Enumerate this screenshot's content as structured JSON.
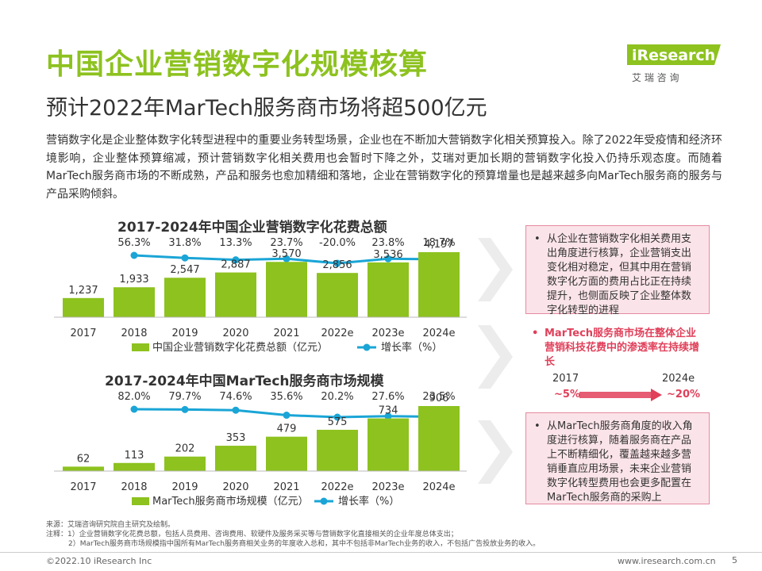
{
  "header": {
    "title": "中国企业营销数字化规模核算",
    "subtitle": "预计2022年MarTech服务商市场将超500亿元",
    "logo_text": "iResearch",
    "logo_sub": "艾 瑞 咨 询"
  },
  "intro": "营销数字化是企业整体数字化转型进程中的重要业务转型场景，企业也在不断加大营销数字化相关预算投入。除了2022年受疫情和经济环境影响，企业整体预算缩减，预计营销数字化相关费用也会暂时下降之外，艾瑞对更加长期的营销数字化投入仍持乐观态度。而随着MarTech服务商市场的不断成熟，产品和服务也愈加精细和落地，企业在营销数字化的预算增量也是越来越多向MarTech服务商的服务与产品采购倾斜。",
  "colors": {
    "title_green": "#8dc21f",
    "bar_green": "#8dc21f",
    "line_blue": "#1aa5d6",
    "box_border": "#e48aa0",
    "box_fill": "#fbe4e9",
    "highlight_red": "#e0405a"
  },
  "chart_data": [
    {
      "type": "bar",
      "title": "2017-2024年中国企业营销数字化花费总额",
      "categories": [
        "2017",
        "2018",
        "2019",
        "2020",
        "2021",
        "2022e",
        "2023e",
        "2024e"
      ],
      "series": [
        {
          "name": "中国企业营销数字化花费总额（亿元）",
          "type": "bar",
          "values": [
            1237,
            1933,
            2547,
            2887,
            3570,
            2856,
            3536,
            4197
          ],
          "labels": [
            "1,237",
            "1,933",
            "2,547",
            "2,887",
            "3,570",
            "2,856",
            "3,536",
            "4,197"
          ]
        },
        {
          "name": "增长率（%）",
          "type": "line",
          "values": [
            null,
            56.3,
            31.8,
            13.3,
            23.7,
            -20.0,
            23.8,
            18.7
          ],
          "labels": [
            "",
            "56.3%",
            "31.8%",
            "13.3%",
            "23.7%",
            "-20.0%",
            "23.8%",
            "18.7%"
          ]
        }
      ],
      "legend": [
        "中国企业营销数字化花费总额（亿元）",
        "增长率（%）"
      ],
      "ylim": [
        0,
        4400
      ]
    },
    {
      "type": "bar",
      "title": "2017-2024年中国MarTech服务商市场规模",
      "categories": [
        "2017",
        "2018",
        "2019",
        "2020",
        "2021",
        "2022e",
        "2023e",
        "2024e"
      ],
      "series": [
        {
          "name": "MarTech服务商市场规模（亿元）",
          "type": "bar",
          "values": [
            62,
            113,
            202,
            353,
            479,
            575,
            734,
            906
          ],
          "labels": [
            "62",
            "113",
            "202",
            "353",
            "479",
            "575",
            "734",
            "906"
          ]
        },
        {
          "name": "增长率（%）",
          "type": "line",
          "values": [
            null,
            82.0,
            79.7,
            74.6,
            35.6,
            20.2,
            27.6,
            23.5
          ],
          "labels": [
            "",
            "82.0%",
            "79.7%",
            "74.6%",
            "35.6%",
            "20.2%",
            "27.6%",
            "23.5%"
          ]
        }
      ],
      "legend": [
        "MarTech服务商市场规模（亿元）",
        "增长率（%）"
      ],
      "ylim": [
        0,
        950
      ]
    }
  ],
  "side": {
    "box1": "从企业在营销数字化相关费用支出角度进行核算，企业营销支出变化相对稳定，但其中用在营销数字化方面的费用占比正在持续提升，也侧面反映了企业整体数字化转型的进程",
    "highlight": "MarTech服务商市场在整体企业营销科技花费中的渗透率在持续增长",
    "compare": {
      "start_year": "2017",
      "end_year": "2024e",
      "start_value": "~5%",
      "end_value": "~20%"
    },
    "box2": "从MarTech服务商角度的收入角度进行核算，随着服务商在产品上不断精细化，覆盖越来越多营销垂直应用场景，未来企业营销数字化转型费用也会更多配置在MarTech服务商的采购上"
  },
  "footnotes": {
    "source": "来源：艾瑞咨询研究院自主研究及绘制。",
    "note1": "注释：1）企业营销数字化花费总额，包括人员费用、咨询费用、软硬件及服务采买等与营销数字化直接相关的企业年度总体支出；",
    "note2": "2）MarTech服务商市场规模指中国所有MarTech服务商相关业务的年度收入总和，其中不包括非MarTech业务的收入，不包括广告投放业务的收入。"
  },
  "footer": {
    "copyright": "©2022.10 iResearch Inc",
    "website": "www.iresearch.com.cn",
    "page": "5"
  }
}
